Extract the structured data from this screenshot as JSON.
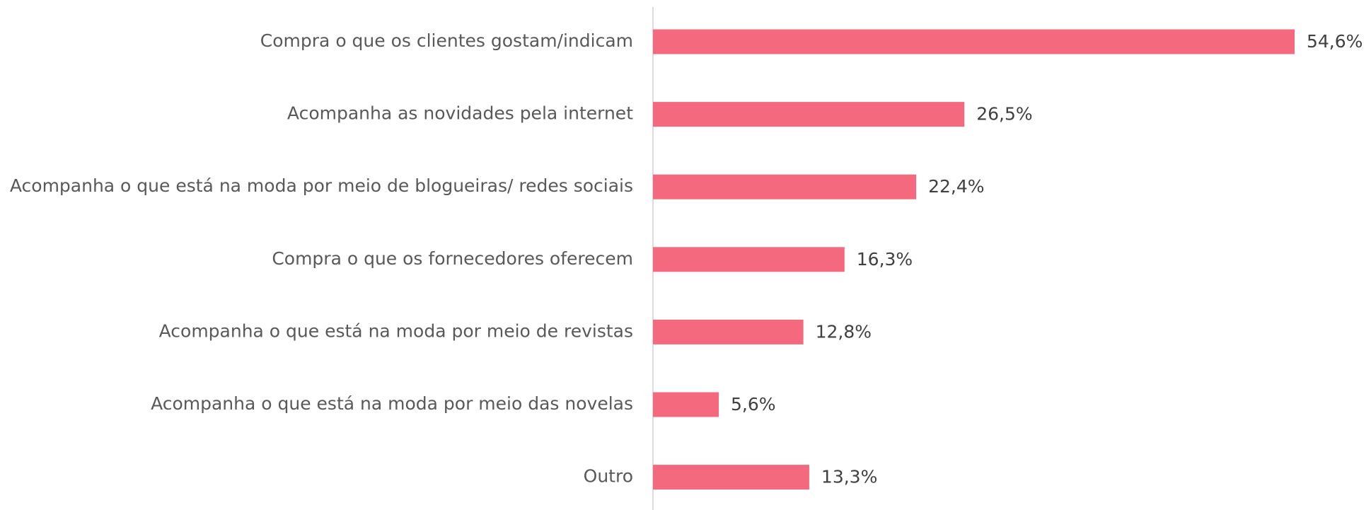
{
  "chart_data": {
    "type": "bar",
    "orientation": "horizontal",
    "categories": [
      "Compra o que os clientes gostam/indicam",
      "Acompanha as novidades pela internet",
      "Acompanha o que está na moda por meio de blogueiras/ redes sociais",
      "Compra o que os fornecedores oferecem",
      "Acompanha o que está na moda por meio de revistas",
      "Acompanha o que está na moda por meio das novelas",
      "Outro"
    ],
    "values": [
      54.6,
      26.5,
      22.4,
      16.3,
      12.8,
      5.6,
      13.3
    ],
    "value_labels": [
      "54,6%",
      "26,5%",
      "22,4%",
      "16,3%",
      "12,8%",
      "5,6%",
      "13,3%"
    ],
    "color": "#f4697d"
  }
}
